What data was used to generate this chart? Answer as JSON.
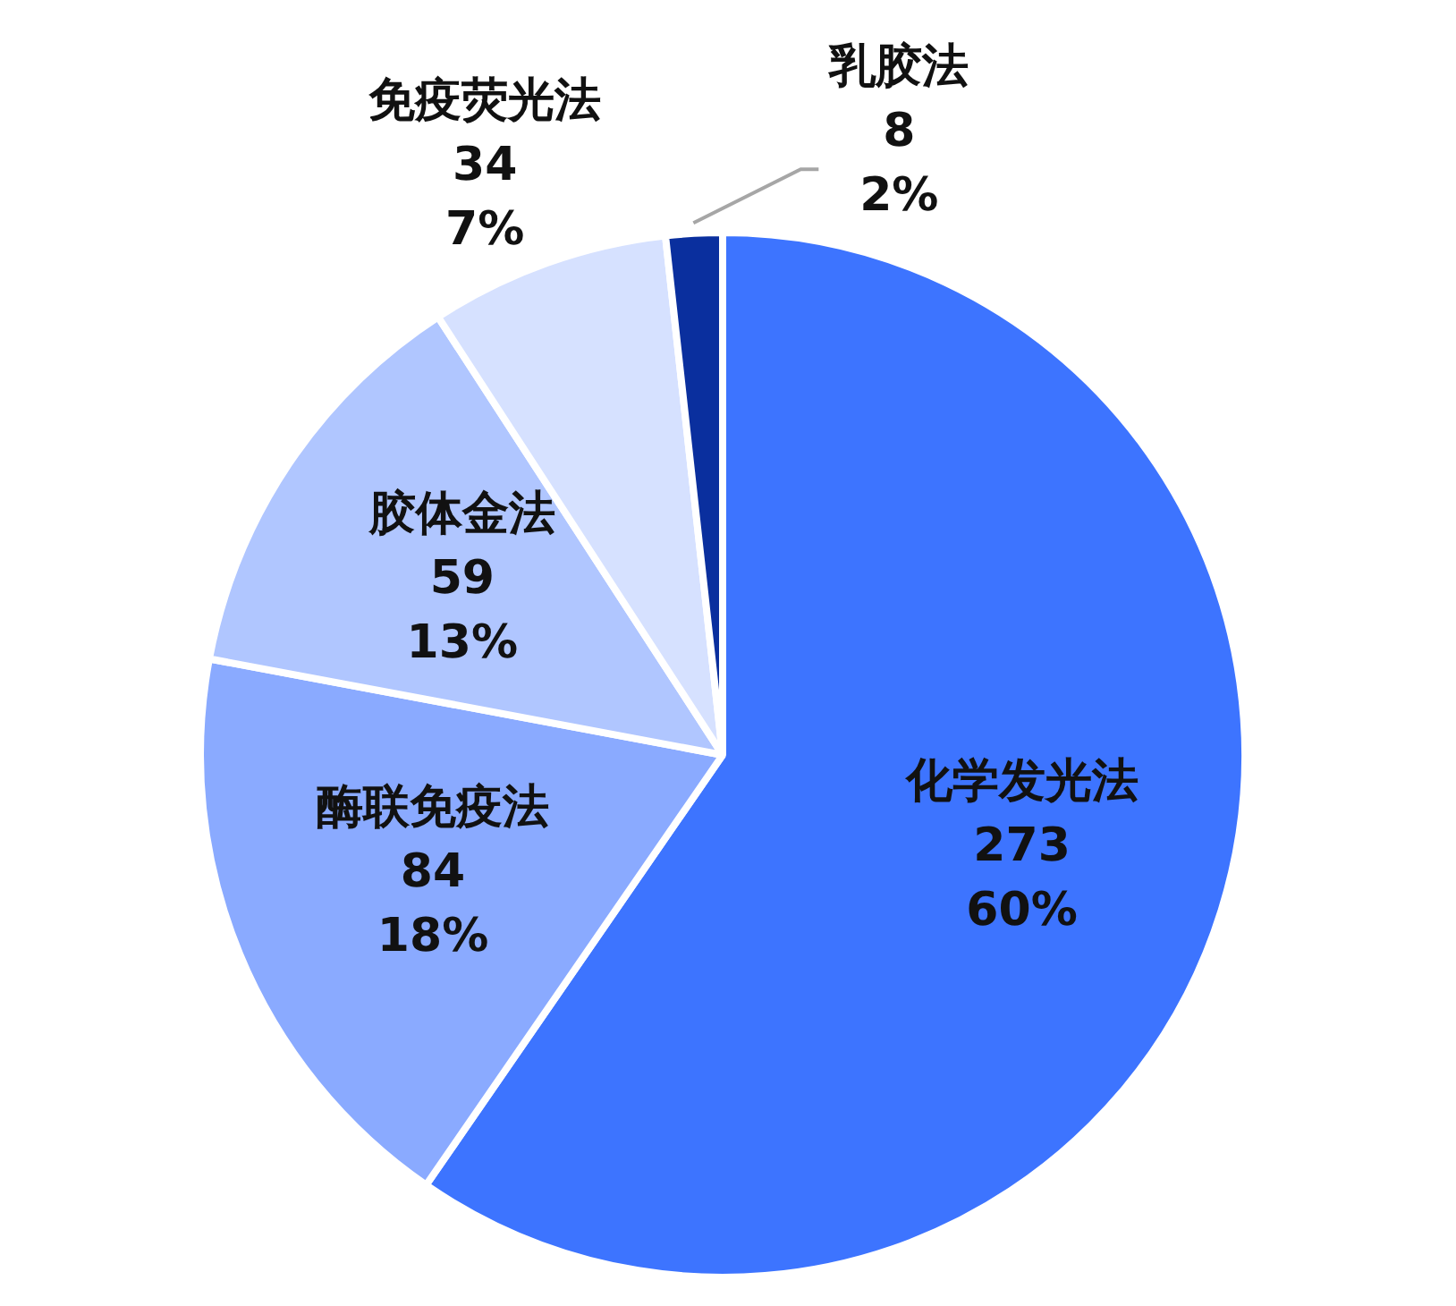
{
  "chart_data": {
    "type": "pie",
    "categories": [
      "化学发光法",
      "酶联免疫法",
      "胶体金法",
      "免疫荧光法",
      "乳胶法"
    ],
    "values": [
      273,
      84,
      59,
      34,
      8
    ],
    "colors": [
      "#3d74ff",
      "#8aaaff",
      "#b0c6ff",
      "#d6e1ff",
      "#0a2f9e"
    ],
    "value_labels": [
      "273\n60%",
      "84\n18%",
      "59\n13%",
      "34\n7%",
      "8\n2%"
    ],
    "legend": false
  }
}
